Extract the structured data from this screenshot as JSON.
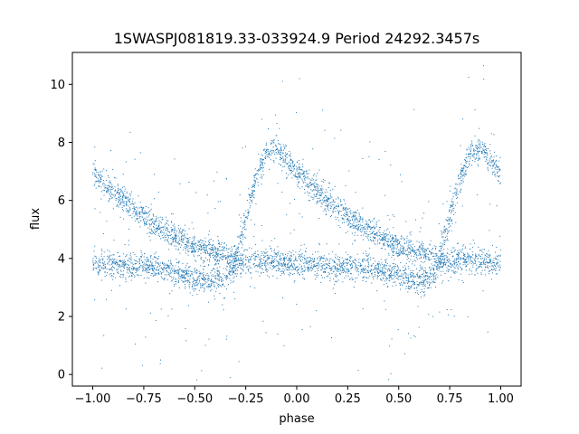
{
  "chart_data": {
    "type": "scatter",
    "title": "1SWASPJ081819.33-033924.9 Period 24292.3457s",
    "xlabel": "phase",
    "ylabel": "flux",
    "xlim": [
      -1.1,
      1.1
    ],
    "ylim": [
      -0.4,
      11.1
    ],
    "x_ticks": [
      -1.0,
      -0.75,
      -0.5,
      -0.25,
      0.0,
      0.25,
      0.5,
      0.75,
      1.0
    ],
    "x_tick_labels": [
      "−1.00",
      "−0.75",
      "−0.50",
      "−0.25",
      "0.00",
      "0.25",
      "0.50",
      "0.75",
      "1.00"
    ],
    "y_ticks": [
      0,
      2,
      4,
      6,
      8,
      10
    ],
    "y_tick_labels": [
      "0",
      "2",
      "4",
      "6",
      "8",
      "10"
    ],
    "grid": false,
    "marker_color": "#1f77b4",
    "series": [
      {
        "description_points": "upper sawtooth branch (folded light curve)",
        "x": [
          -1.0,
          -0.9,
          -0.8,
          -0.7,
          -0.6,
          -0.5,
          -0.4,
          -0.3,
          -0.25,
          -0.2,
          -0.15,
          -0.1,
          -0.05,
          0.0,
          0.1,
          0.2,
          0.3,
          0.4,
          0.5,
          0.6,
          0.7,
          0.75,
          0.8,
          0.85,
          0.9,
          0.95,
          1.0
        ],
        "y": [
          6.9,
          6.3,
          5.7,
          5.2,
          4.8,
          4.4,
          4.2,
          4.0,
          5.4,
          6.8,
          7.6,
          7.8,
          7.4,
          7.0,
          6.3,
          5.7,
          5.2,
          4.8,
          4.4,
          4.2,
          4.0,
          5.4,
          6.8,
          7.6,
          7.8,
          7.4,
          7.0
        ]
      },
      {
        "description_points": "lower flat branch with dip",
        "x": [
          -1.0,
          -0.9,
          -0.8,
          -0.7,
          -0.6,
          -0.5,
          -0.45,
          -0.4,
          -0.35,
          -0.3,
          -0.2,
          -0.1,
          0.0,
          0.1,
          0.2,
          0.3,
          0.4,
          0.5,
          0.55,
          0.6,
          0.65,
          0.7,
          0.8,
          0.9,
          1.0
        ],
        "y": [
          3.8,
          3.75,
          3.7,
          3.7,
          3.5,
          3.3,
          3.2,
          3.2,
          3.3,
          3.8,
          3.95,
          3.9,
          3.8,
          3.75,
          3.7,
          3.7,
          3.6,
          3.4,
          3.25,
          3.2,
          3.3,
          3.8,
          3.95,
          3.9,
          3.8
        ]
      }
    ]
  }
}
